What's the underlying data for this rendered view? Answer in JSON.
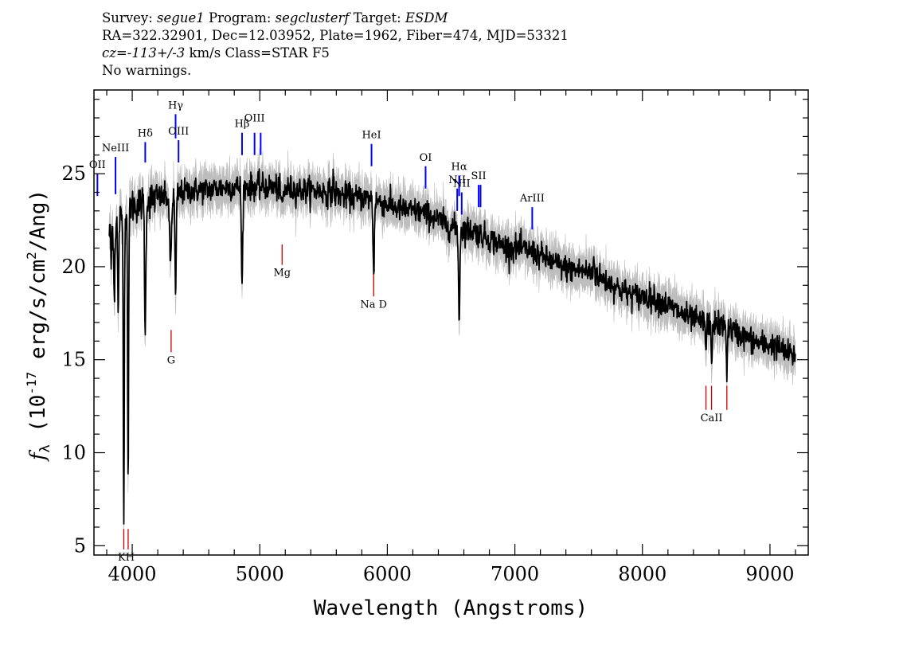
{
  "header": {
    "line1": {
      "survey_label": "Survey:",
      "survey": "segue1",
      "program_label": "Program:",
      "program": "segclusterf",
      "target_label": "Target:",
      "target": "ESDM"
    },
    "line2": "RA=322.32901, Dec=12.03952, Plate=1962, Fiber=474, MJD=53321",
    "line3": {
      "cz": "cz=-113+/-3",
      "rest": " km/s Class=STAR F5"
    },
    "line4": "No warnings."
  },
  "chart_data": {
    "type": "line",
    "xlabel": "Wavelength (Angstroms)",
    "ylabel_parts": {
      "f": "f",
      "sub": "λ",
      "pre": " (10",
      "exp": "-17",
      "mid": " erg/s/cm",
      "exp2": "2",
      "post": "/Ang)"
    },
    "xlim": [
      3700,
      9300
    ],
    "ylim": [
      4.5,
      29.5
    ],
    "xticks": [
      4000,
      5000,
      6000,
      7000,
      8000,
      9000
    ],
    "yticks": [
      5,
      10,
      15,
      20,
      25
    ],
    "x_minor_step": 200,
    "y_minor_step": 1,
    "continuum_anchors": [
      [
        3820,
        21.8
      ],
      [
        3900,
        22.6
      ],
      [
        4000,
        23.3
      ],
      [
        4200,
        23.7
      ],
      [
        4500,
        24.1
      ],
      [
        4800,
        24.3
      ],
      [
        5000,
        24.3
      ],
      [
        5400,
        24.1
      ],
      [
        5800,
        23.7
      ],
      [
        6200,
        23.0
      ],
      [
        6600,
        22.0
      ],
      [
        7000,
        21.0
      ],
      [
        7500,
        19.8
      ],
      [
        8000,
        18.4
      ],
      [
        8500,
        17.0
      ],
      [
        9000,
        15.8
      ],
      [
        9200,
        15.2
      ]
    ],
    "absorption_features": [
      {
        "x": 3835,
        "depth": 1.8,
        "width": 3
      },
      {
        "x": 3860,
        "depth": 4.0,
        "width": 4
      },
      {
        "x": 3890,
        "depth": 5.5,
        "width": 4
      },
      {
        "x": 3934,
        "depth": 16.0,
        "width": 4
      },
      {
        "x": 3968,
        "depth": 15.0,
        "width": 4
      },
      {
        "x": 4102,
        "depth": 7.0,
        "width": 5
      },
      {
        "x": 4300,
        "depth": 3.5,
        "width": 8
      },
      {
        "x": 4340,
        "depth": 5.5,
        "width": 5
      },
      {
        "x": 4861,
        "depth": 5.5,
        "width": 5
      },
      {
        "x": 5175,
        "depth": 0.8,
        "width": 10
      },
      {
        "x": 5893,
        "depth": 4.0,
        "width": 5
      },
      {
        "x": 6563,
        "depth": 5.0,
        "width": 5
      },
      {
        "x": 8498,
        "depth": 1.5,
        "width": 4
      },
      {
        "x": 8542,
        "depth": 2.5,
        "width": 4
      },
      {
        "x": 8662,
        "depth": 2.2,
        "width": 4
      }
    ],
    "emission_spikes": [
      {
        "x": 5577,
        "height": 1.0,
        "width": 3
      },
      {
        "x": 7620,
        "height": 0.9,
        "width": 4
      }
    ],
    "noise_sigma": 0.35,
    "error_band_halfwidth": 0.6,
    "spectrum_color": "#000000",
    "error_color": "#bdbdbd",
    "emission_color": "#0000ff",
    "absorption_color": "#cc0000",
    "emission_lines": [
      {
        "label": "OII",
        "x": 3727,
        "y1": 23.8,
        "y2": 25.0,
        "label_y": 25.3
      },
      {
        "label": "NeIII",
        "x": 3869,
        "y1": 23.9,
        "y2": 25.9,
        "label_y": 26.2
      },
      {
        "label": "Hδ",
        "x": 4102,
        "y1": 25.6,
        "y2": 26.7,
        "label_y": 27.0
      },
      {
        "label": "Hγ",
        "x": 4340,
        "y1": 26.9,
        "y2": 28.2,
        "label_y": 28.5
      },
      {
        "label": "OIII",
        "x": 4363,
        "y1": 25.6,
        "y2": 26.8,
        "label_y": 27.1
      },
      {
        "label": "Hβ",
        "x": 4861,
        "y1": 26.0,
        "y2": 27.2,
        "label_y": 27.5
      },
      {
        "label": "OIII",
        "x": 4959,
        "y1": 26.0,
        "y2": 27.2,
        "label_y": 27.8
      },
      {
        "label": "",
        "x": 5007,
        "y1": 26.0,
        "y2": 27.2,
        "label_y": 27.8
      },
      {
        "label": "HeI",
        "x": 5876,
        "y1": 25.4,
        "y2": 26.6,
        "label_y": 26.9
      },
      {
        "label": "OI",
        "x": 6300,
        "y1": 24.2,
        "y2": 25.4,
        "label_y": 25.7
      },
      {
        "label": "NII",
        "x": 6548,
        "y1": 23.0,
        "y2": 24.2,
        "label_y": 24.5
      },
      {
        "label": "Hα",
        "x": 6563,
        "y1": 23.8,
        "y2": 24.9,
        "label_y": 25.2
      },
      {
        "label": "NII",
        "x": 6583,
        "y1": 22.8,
        "y2": 24.0,
        "label_y": 24.3
      },
      {
        "label": "SII",
        "x": 6716,
        "y1": 23.2,
        "y2": 24.4,
        "label_y": 24.7
      },
      {
        "label": "",
        "x": 6731,
        "y1": 23.2,
        "y2": 24.4,
        "label_y": 24.7
      },
      {
        "label": "ArIII",
        "x": 7136,
        "y1": 22.0,
        "y2": 23.2,
        "label_y": 23.5
      }
    ],
    "absorption_lines": [
      {
        "label": "",
        "x": 3934,
        "y1": 4.8,
        "y2": 5.9,
        "label_y": 0
      },
      {
        "label": "KH",
        "x": 3953,
        "y1": 0,
        "y2": 0,
        "label_y": 4.2
      },
      {
        "label": "",
        "x": 3968,
        "y1": 4.8,
        "y2": 5.9,
        "label_y": 0
      },
      {
        "label": "G",
        "x": 4305,
        "y1": 15.4,
        "y2": 16.6,
        "label_y": 14.8
      },
      {
        "label": "Mg",
        "x": 5175,
        "y1": 20.1,
        "y2": 21.2,
        "label_y": 19.5
      },
      {
        "label": "Na D",
        "x": 5893,
        "y1": 18.4,
        "y2": 19.6,
        "label_y": 17.8
      },
      {
        "label": "",
        "x": 8498,
        "y1": 12.3,
        "y2": 13.6,
        "label_y": 0
      },
      {
        "label": "CaII",
        "x": 8542,
        "y1": 12.3,
        "y2": 13.6,
        "label_y": 11.7
      },
      {
        "label": "",
        "x": 8662,
        "y1": 12.3,
        "y2": 13.6,
        "label_y": 0
      }
    ]
  }
}
